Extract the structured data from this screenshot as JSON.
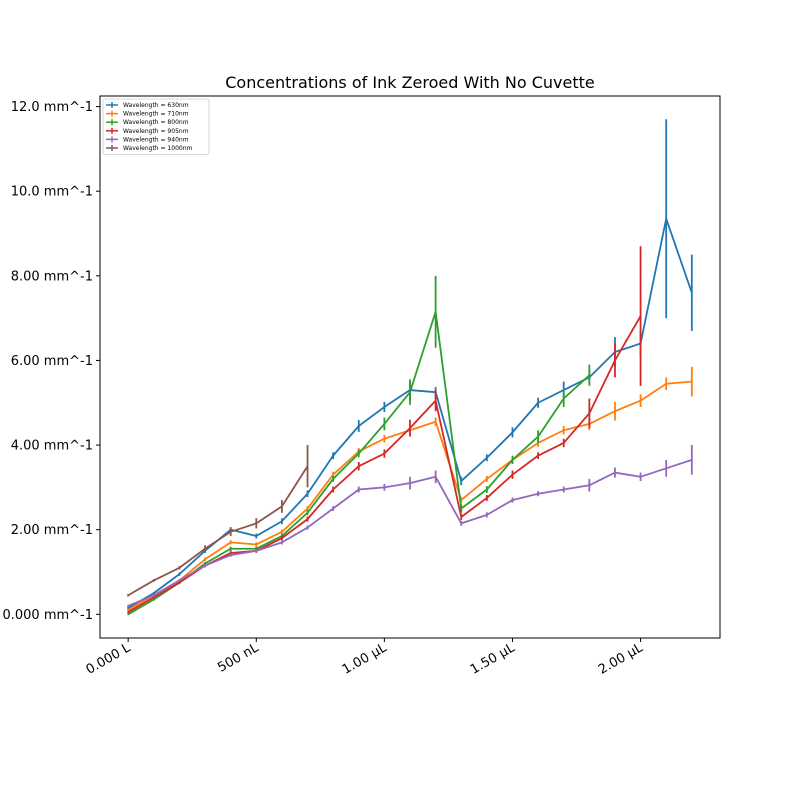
{
  "chart_data": {
    "type": "line",
    "title": "Concentrations of Ink Zeroed With No Cuvette",
    "xlabel": "",
    "ylabel": "",
    "xlim": [
      -0.11,
      2.31
    ],
    "ylim": [
      -0.056,
      1.225
    ],
    "x_ticks": [
      {
        "value": 0.0,
        "label": "0.000 L"
      },
      {
        "value": 0.5,
        "label": "500 nL"
      },
      {
        "value": 1.0,
        "label": "1.00 μL"
      },
      {
        "value": 1.5,
        "label": "1.50 μL"
      },
      {
        "value": 2.0,
        "label": "2.00 μL"
      }
    ],
    "y_ticks": [
      {
        "value": 0.0,
        "label": "0.000 mm^-1"
      },
      {
        "value": 0.2,
        "label": "2.00 mm^-1"
      },
      {
        "value": 0.4,
        "label": "4.00 mm^-1"
      },
      {
        "value": 0.6,
        "label": "6.00 mm^-1"
      },
      {
        "value": 0.8,
        "label": "8.00 mm^-1"
      },
      {
        "value": 1.0,
        "label": "10.0 mm^-1"
      },
      {
        "value": 1.2,
        "label": "12.0 mm^-1"
      }
    ],
    "grid": false,
    "legend_position": "top-left",
    "error_bars": true,
    "series": [
      {
        "name": "Wavelength = 630nm",
        "color": "#1f77b4",
        "x": [
          0.0,
          0.1,
          0.2,
          0.3,
          0.4,
          0.5,
          0.6,
          0.7,
          0.8,
          0.9,
          1.0,
          1.1,
          1.2,
          1.3,
          1.4,
          1.5,
          1.6,
          1.7,
          1.8,
          1.9,
          2.0,
          2.1,
          2.2
        ],
        "y": [
          0.015,
          0.05,
          0.095,
          0.15,
          0.2,
          0.185,
          0.22,
          0.285,
          0.375,
          0.445,
          0.49,
          0.53,
          0.525,
          0.315,
          0.37,
          0.43,
          0.5,
          0.53,
          0.56,
          0.62,
          0.64,
          0.935,
          0.76
        ],
        "err": [
          0.003,
          0.003,
          0.004,
          0.005,
          0.006,
          0.006,
          0.007,
          0.008,
          0.008,
          0.014,
          0.012,
          0.025,
          0.012,
          0.01,
          0.008,
          0.012,
          0.012,
          0.02,
          0.015,
          0.035,
          0.03,
          0.235,
          0.09
        ]
      },
      {
        "name": "Wavelength = 710nm",
        "color": "#ff7f0e",
        "x": [
          0.0,
          0.1,
          0.2,
          0.3,
          0.4,
          0.5,
          0.6,
          0.7,
          0.8,
          0.9,
          1.0,
          1.1,
          1.2,
          1.3,
          1.4,
          1.5,
          1.6,
          1.7,
          1.8,
          1.9,
          2.0,
          2.1,
          2.2
        ],
        "y": [
          0.01,
          0.045,
          0.08,
          0.13,
          0.17,
          0.165,
          0.195,
          0.25,
          0.33,
          0.385,
          0.415,
          0.435,
          0.455,
          0.27,
          0.32,
          0.365,
          0.405,
          0.435,
          0.45,
          0.48,
          0.505,
          0.545,
          0.55
        ],
        "err": [
          0.003,
          0.003,
          0.003,
          0.004,
          0.005,
          0.005,
          0.005,
          0.006,
          0.007,
          0.008,
          0.009,
          0.01,
          0.01,
          0.007,
          0.007,
          0.008,
          0.009,
          0.01,
          0.015,
          0.022,
          0.015,
          0.015,
          0.035
        ]
      },
      {
        "name": "Wavelength = 800nm",
        "color": "#2ca02c",
        "x": [
          0.0,
          0.1,
          0.2,
          0.3,
          0.4,
          0.5,
          0.6,
          0.7,
          0.8,
          0.9,
          1.0,
          1.1,
          1.2,
          1.3,
          1.4,
          1.5,
          1.6,
          1.7,
          1.8
        ],
        "y": [
          0.0,
          0.035,
          0.075,
          0.12,
          0.155,
          0.155,
          0.185,
          0.24,
          0.32,
          0.38,
          0.45,
          0.525,
          0.715,
          0.25,
          0.295,
          0.365,
          0.42,
          0.51,
          0.565
        ],
        "err": [
          0.002,
          0.003,
          0.004,
          0.004,
          0.005,
          0.005,
          0.005,
          0.006,
          0.007,
          0.009,
          0.015,
          0.03,
          0.085,
          0.01,
          0.008,
          0.01,
          0.015,
          0.02,
          0.025
        ]
      },
      {
        "name": "Wavelength = 905nm",
        "color": "#d62728",
        "x": [
          0.0,
          0.1,
          0.2,
          0.3,
          0.4,
          0.5,
          0.6,
          0.7,
          0.8,
          0.9,
          1.0,
          1.1,
          1.2,
          1.3,
          1.4,
          1.5,
          1.6,
          1.7,
          1.8,
          1.9,
          2.0
        ],
        "y": [
          0.005,
          0.04,
          0.075,
          0.115,
          0.145,
          0.15,
          0.18,
          0.225,
          0.295,
          0.35,
          0.38,
          0.44,
          0.505,
          0.23,
          0.275,
          0.33,
          0.375,
          0.405,
          0.475,
          0.6,
          0.705
        ],
        "err": [
          0.002,
          0.003,
          0.003,
          0.004,
          0.005,
          0.005,
          0.005,
          0.006,
          0.007,
          0.01,
          0.01,
          0.02,
          0.025,
          0.007,
          0.007,
          0.01,
          0.008,
          0.01,
          0.035,
          0.04,
          0.165
        ]
      },
      {
        "name": "Wavelength = 940nm",
        "color": "#9467bd",
        "x": [
          0.0,
          0.1,
          0.2,
          0.3,
          0.4,
          0.5,
          0.6,
          0.7,
          0.8,
          0.9,
          1.0,
          1.1,
          1.2,
          1.3,
          1.4,
          1.5,
          1.6,
          1.7,
          1.8,
          1.9,
          2.0,
          2.1,
          2.2
        ],
        "y": [
          0.02,
          0.045,
          0.08,
          0.115,
          0.14,
          0.15,
          0.17,
          0.205,
          0.25,
          0.295,
          0.3,
          0.31,
          0.325,
          0.215,
          0.235,
          0.27,
          0.285,
          0.295,
          0.305,
          0.335,
          0.325,
          0.345,
          0.365
        ],
        "err": [
          0.002,
          0.003,
          0.003,
          0.004,
          0.004,
          0.004,
          0.005,
          0.005,
          0.006,
          0.007,
          0.008,
          0.015,
          0.015,
          0.006,
          0.006,
          0.006,
          0.006,
          0.007,
          0.015,
          0.012,
          0.01,
          0.02,
          0.035
        ]
      },
      {
        "name": "Wavelength = 1000nm",
        "color": "#8c564b",
        "x": [
          0.0,
          0.1,
          0.2,
          0.3,
          0.4,
          0.5,
          0.6,
          0.7
        ],
        "y": [
          0.045,
          0.08,
          0.11,
          0.155,
          0.195,
          0.215,
          0.255,
          0.35
        ],
        "err": [
          0.003,
          0.003,
          0.004,
          0.008,
          0.01,
          0.012,
          0.015,
          0.05
        ]
      }
    ]
  }
}
